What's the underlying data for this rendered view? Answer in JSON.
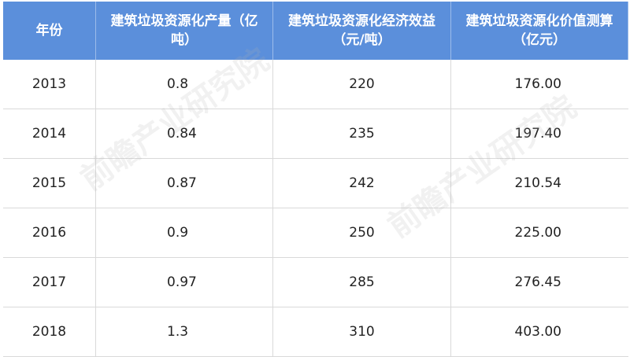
{
  "chart_data": {
    "type": "table",
    "columns": [
      "年份",
      "建筑垃圾资源化产量（亿吨）",
      "建筑垃圾资源化经济效益（元/吨）",
      "建筑垃圾资源化价值测算（亿元）"
    ],
    "rows": [
      [
        "2013",
        "0.8",
        "220",
        "176.00"
      ],
      [
        "2014",
        "0.84",
        "235",
        "197.40"
      ],
      [
        "2015",
        "0.87",
        "242",
        "210.54"
      ],
      [
        "2016",
        "0.9",
        "250",
        "225.00"
      ],
      [
        "2017",
        "0.97",
        "285",
        "276.45"
      ],
      [
        "2018",
        "1.3",
        "310",
        "403.00"
      ]
    ],
    "header_color": "#5b8fdb"
  },
  "watermark": "前瞻产业研究院"
}
